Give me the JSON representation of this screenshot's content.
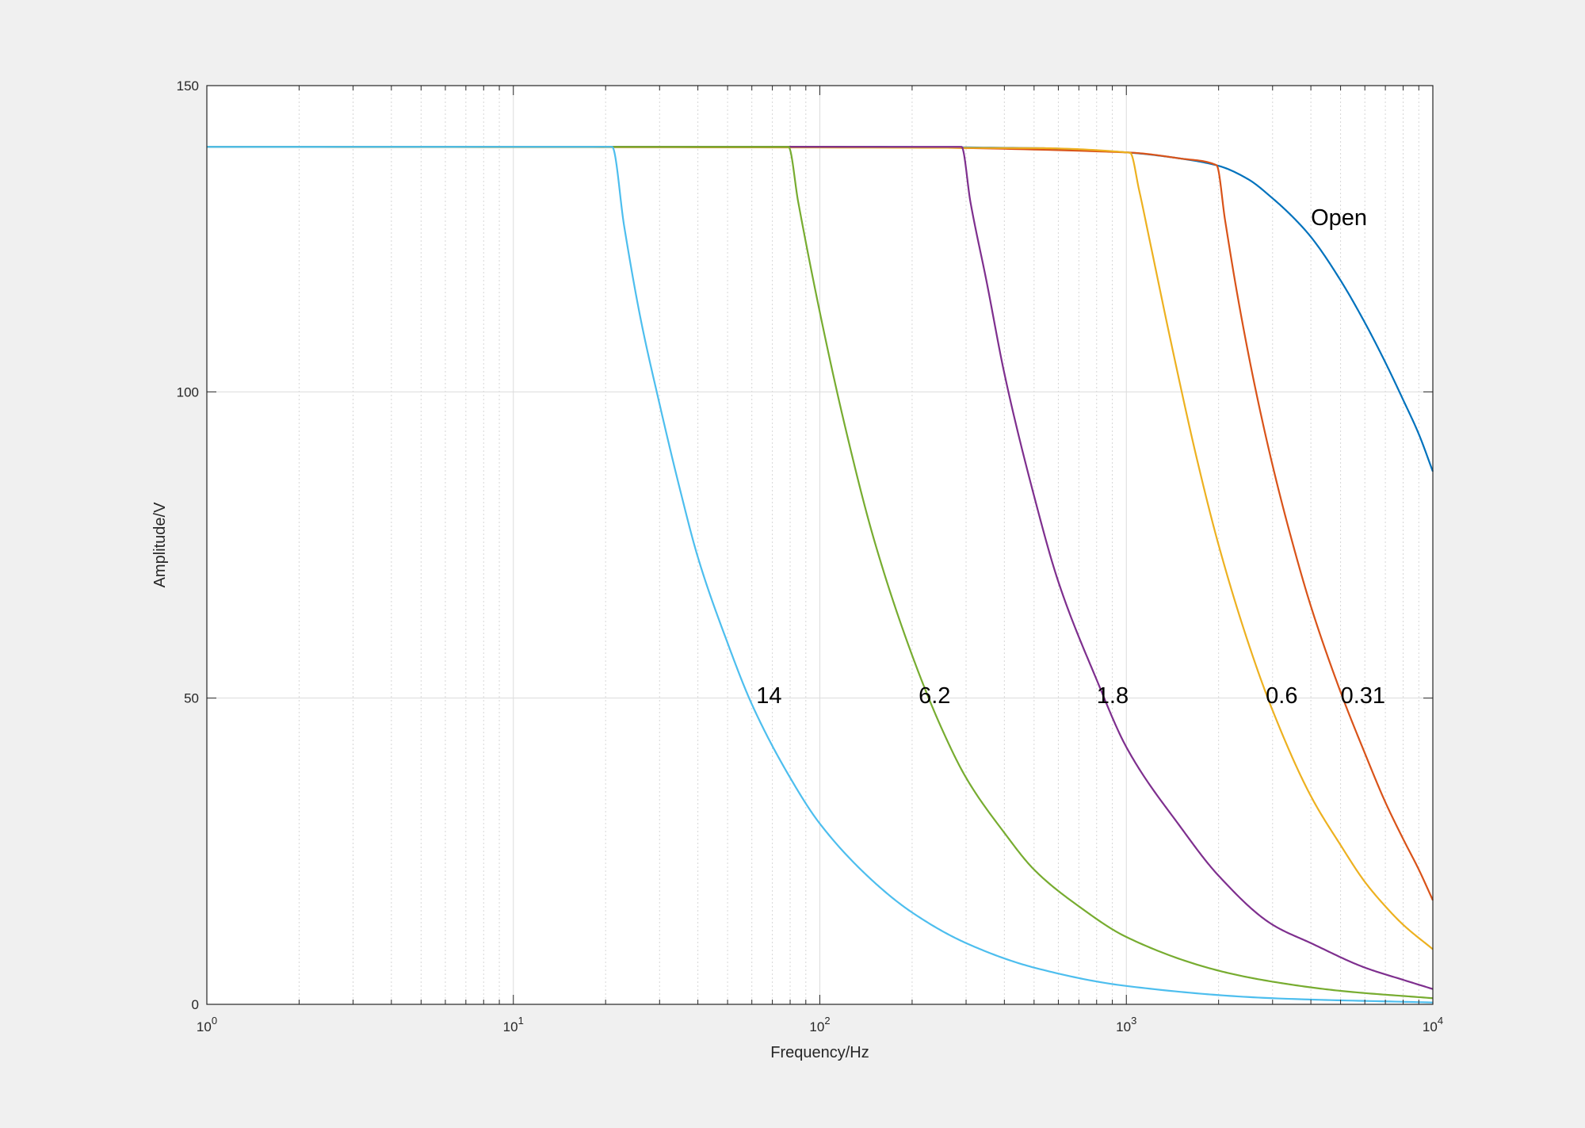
{
  "chart_data": {
    "type": "line",
    "title": "",
    "xlabel": "Frequency/Hz",
    "ylabel": "Amplitude/V",
    "xscale": "log",
    "xlim": [
      1,
      10000
    ],
    "ylim": [
      0,
      150
    ],
    "grid": true,
    "minor_grid_x": true,
    "xticks": [
      {
        "value": 1,
        "base": "10",
        "exp": "0"
      },
      {
        "value": 10,
        "base": "10",
        "exp": "1"
      },
      {
        "value": 100,
        "base": "10",
        "exp": "2"
      },
      {
        "value": 1000,
        "base": "10",
        "exp": "3"
      },
      {
        "value": 10000,
        "base": "10",
        "exp": "4"
      }
    ],
    "yticks": [
      {
        "value": 0,
        "label": "0"
      },
      {
        "value": 50,
        "label": "50"
      },
      {
        "value": 100,
        "label": "100"
      },
      {
        "value": 150,
        "label": "150"
      }
    ],
    "series": [
      {
        "name": "Open",
        "color": "#0072BD",
        "x": [
          1,
          100,
          500,
          1000,
          1500,
          2000,
          2500,
          3000,
          3500,
          4000,
          5000,
          6000,
          7000,
          8000,
          9000,
          10000
        ],
        "y": [
          140,
          140,
          139.8,
          139.1,
          138.1,
          136.9,
          134.7,
          131.6,
          128.5,
          125.3,
          118.2,
          111.3,
          104.8,
          98.7,
          93.1,
          87
        ]
      },
      {
        "name": "0.31",
        "color": "#D95319",
        "x": [
          1,
          100,
          1000,
          1500,
          1970,
          2100,
          2300,
          2600,
          3000,
          3500,
          4000,
          5000,
          6000,
          7000,
          8000,
          9000,
          10000
        ],
        "y": [
          140,
          140,
          139.1,
          138.1,
          137,
          128,
          116,
          102,
          88,
          75,
          65,
          51,
          41,
          33,
          27,
          22,
          17
        ]
      },
      {
        "name": "0.6",
        "color": "#EDB120",
        "x": [
          1,
          500,
          1000,
          1030,
          1100,
          1200,
          1400,
          1700,
          2000,
          2500,
          3000,
          4000,
          5000,
          6000,
          7000,
          8000,
          10000
        ],
        "y": [
          140,
          139.8,
          139.1,
          139,
          133,
          124,
          108,
          89,
          75,
          59,
          48,
          34,
          26,
          20,
          16,
          13,
          9
        ]
      },
      {
        "name": "1.8",
        "color": "#7E2F8E",
        "x": [
          1,
          100,
          200,
          290,
          310,
          350,
          400,
          500,
          600,
          800,
          1000,
          1500,
          2000,
          3000,
          4000,
          6000,
          8000,
          10000
        ],
        "y": [
          140,
          140,
          140,
          140,
          131,
          118,
          103,
          83,
          69,
          53,
          42,
          29,
          21,
          13,
          10,
          6,
          4,
          2.5
        ]
      },
      {
        "name": "6.2",
        "color": "#77AC30",
        "x": [
          1,
          79,
          85,
          100,
          120,
          150,
          200,
          250,
          300,
          400,
          500,
          700,
          1000,
          2000,
          3000,
          5000,
          10000
        ],
        "y": [
          140,
          140,
          131,
          113,
          95,
          76,
          57,
          45,
          37,
          28,
          22,
          16,
          11,
          5.5,
          3.7,
          2.2,
          1
        ]
      },
      {
        "name": "14",
        "color": "#4DBEEE",
        "x": [
          1,
          10,
          21,
          23,
          26,
          30,
          35,
          40,
          50,
          60,
          80,
          100,
          150,
          200,
          300,
          500,
          1000,
          3000,
          10000
        ],
        "y": [
          140,
          140,
          140,
          127,
          112,
          98,
          84,
          73,
          59,
          49,
          37,
          29.5,
          20,
          15,
          10,
          6,
          3,
          1,
          0.3
        ]
      }
    ],
    "annotations": [
      {
        "text": "Open",
        "x": 4000,
        "y": 128.5
      },
      {
        "text": "0.31",
        "x": 5000,
        "y": 50.5
      },
      {
        "text": "0.6",
        "x": 2850,
        "y": 50.5
      },
      {
        "text": "1.8",
        "x": 800,
        "y": 50.5
      },
      {
        "text": "6.2",
        "x": 210,
        "y": 50.5
      },
      {
        "text": "14",
        "x": 62,
        "y": 50.5
      }
    ]
  }
}
